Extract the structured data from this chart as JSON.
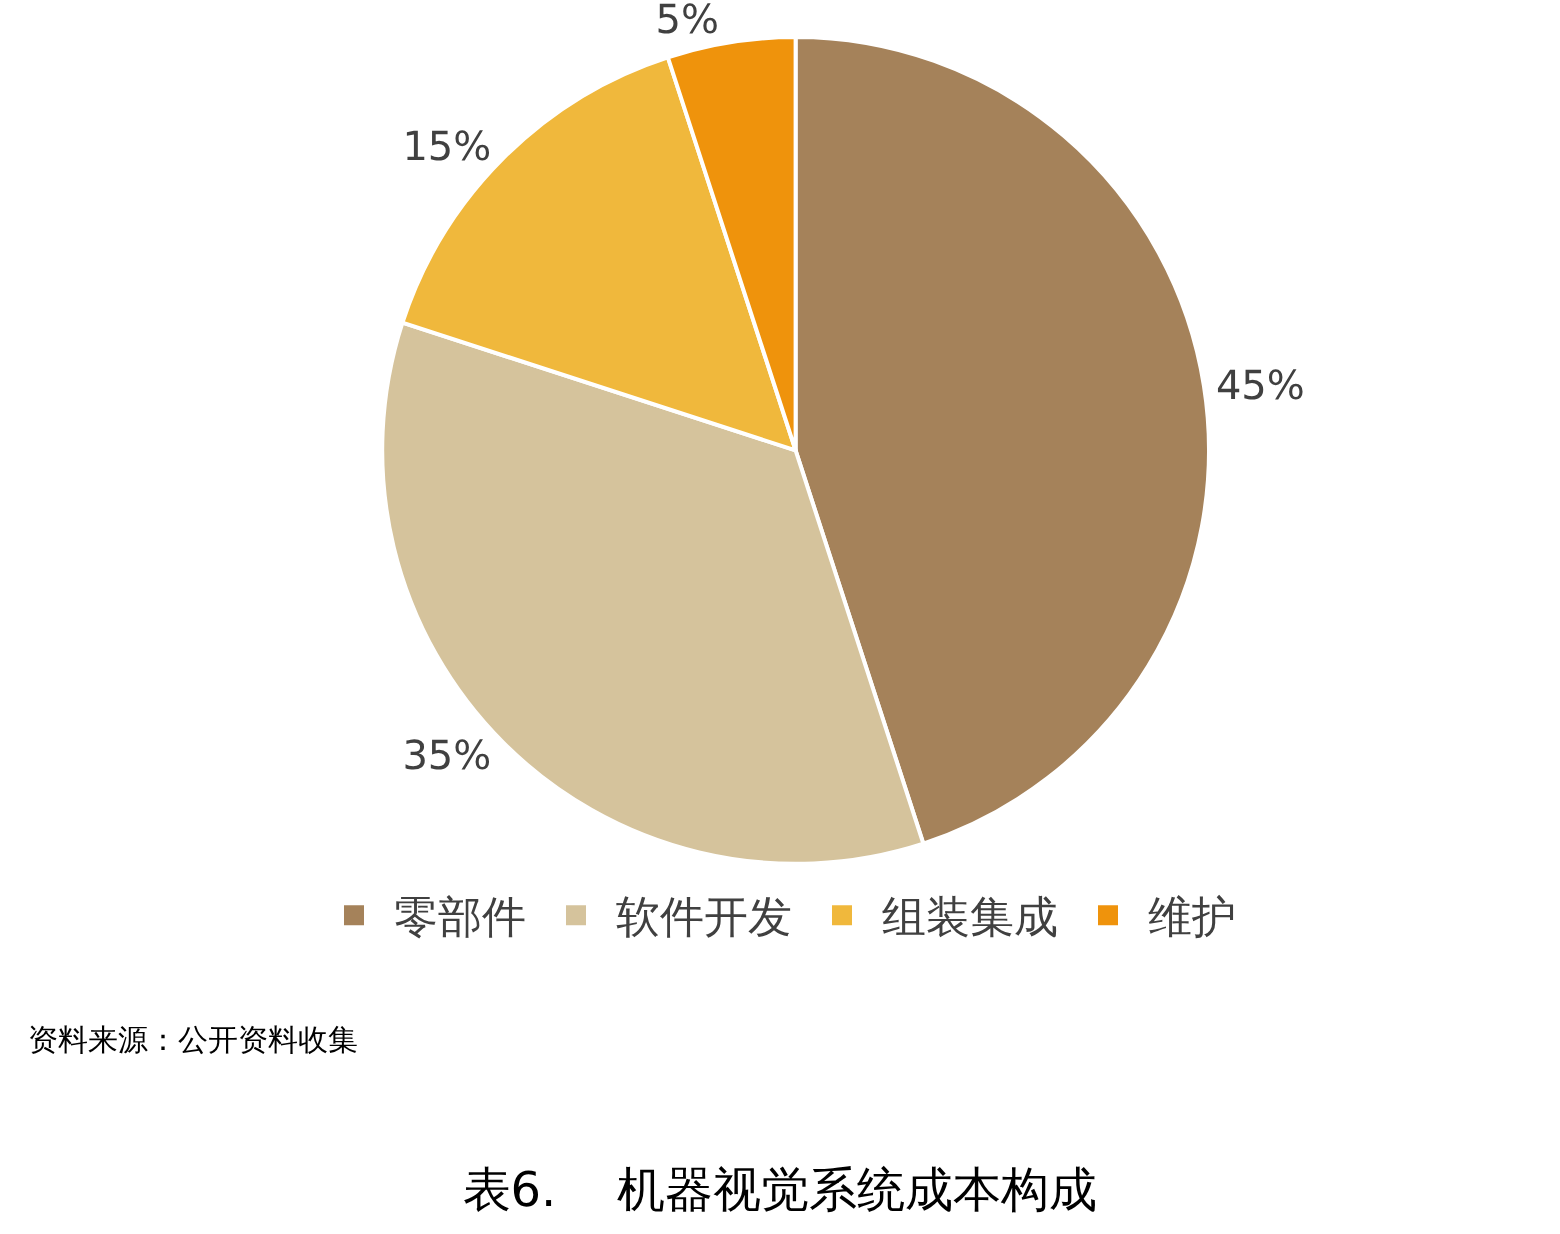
{
  "chart_data": {
    "type": "pie",
    "title": "表6.    机器视觉系统成本构成",
    "categories": [
      "零部件",
      "软件开发",
      "组装集成",
      "维护"
    ],
    "values": [
      45,
      35,
      15,
      5
    ],
    "value_labels": [
      "45%",
      "35%",
      "15%",
      "5%"
    ],
    "colors": [
      "#a5825a",
      "#d5c39c",
      "#f0b83c",
      "#ef930c"
    ],
    "legend": "bottom",
    "annotations": [
      "资料来源：公开资料收集"
    ]
  }
}
